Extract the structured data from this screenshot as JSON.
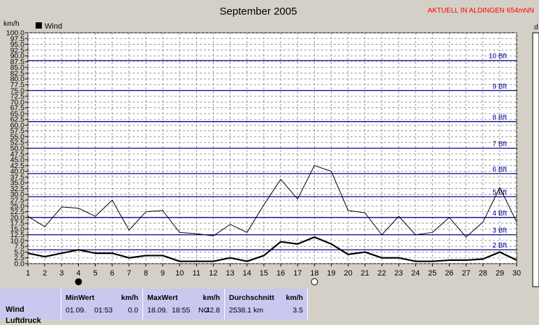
{
  "header": {
    "live_label": "AKTUELL IN ALDINGEN 654mNN"
  },
  "chart_data": {
    "type": "line",
    "title": "September 2005",
    "ylabel": "km/h",
    "right_label_fragment": "d",
    "ylim": [
      0,
      100
    ],
    "y_tick_step": 2.5,
    "y_tick_labels": [
      "0.0",
      "2.5",
      "5.0",
      "7.5",
      "10.0",
      "12.5",
      "15.0",
      "17.5",
      "20.0",
      "22.5",
      "25.0",
      "27.5",
      "30.0",
      "32.5",
      "35.0",
      "37.5",
      "40.0",
      "42.5",
      "45.0",
      "47.5",
      "50.0",
      "52.5",
      "55.0",
      "57.5",
      "60.0",
      "62.5",
      "65.0",
      "67.5",
      "70.0",
      "72.5",
      "75.0",
      "77.5",
      "80.0",
      "82.5",
      "85.0",
      "87.5",
      "90.0",
      "92.5",
      "95.0",
      "97.5",
      "100.0"
    ],
    "x": [
      1,
      2,
      3,
      4,
      5,
      6,
      7,
      8,
      9,
      10,
      11,
      12,
      13,
      14,
      15,
      16,
      17,
      18,
      19,
      20,
      21,
      22,
      23,
      24,
      25,
      26,
      27,
      28,
      29,
      30
    ],
    "xlim": [
      1,
      30
    ],
    "grid": true,
    "legend": {
      "position": "top-left",
      "entries": [
        {
          "name": "Wind",
          "color": "#000000"
        }
      ]
    },
    "series": [
      {
        "name": "Wind",
        "color": "#000000",
        "stroke": "thick",
        "values": [
          4.5,
          3,
          4.5,
          6,
          4.5,
          4.5,
          2.5,
          3.5,
          3.5,
          1,
          1,
          1,
          2.5,
          1,
          3.5,
          9.5,
          8.5,
          11.5,
          8.5,
          4,
          5,
          2.5,
          2.5,
          1,
          1,
          1.5,
          1.5,
          2,
          5,
          1.5
        ]
      },
      {
        "color": "#000000",
        "stroke": "thin",
        "values": [
          20.5,
          16,
          24.5,
          24,
          20.5,
          27.5,
          14.5,
          22.5,
          23,
          13.5,
          13,
          12,
          17,
          13.5,
          25.5,
          36.5,
          28,
          42.5,
          40,
          23,
          22,
          12.5,
          20.5,
          12.5,
          13.5,
          20,
          11.5,
          18,
          33,
          18
        ]
      }
    ],
    "beaufort_lines": [
      {
        "label": "2 Bft",
        "value": 6
      },
      {
        "label": "3 Bft",
        "value": 12.5
      },
      {
        "label": "4 Bft",
        "value": 20
      },
      {
        "label": "5 Bft",
        "value": 29
      },
      {
        "label": "6 Bft",
        "value": 39
      },
      {
        "label": "7 Bft",
        "value": 50
      },
      {
        "label": "8 Bft",
        "value": 61.5
      },
      {
        "label": "9 Bft",
        "value": 75
      },
      {
        "label": "10 Bft",
        "value": 88
      }
    ],
    "beaufort_color": "#00008b",
    "moon_markers": [
      {
        "day": 4,
        "phase": "new"
      },
      {
        "day": 18,
        "phase": "full"
      }
    ]
  },
  "stats": {
    "row_label": "Wind",
    "row_label_2": "Luftdruck",
    "min": {
      "header": "MinWert",
      "unit": "km/h",
      "date": "01.09.",
      "time": "01:53",
      "value": "0.0"
    },
    "max": {
      "header": "MaxWert",
      "unit": "km/h",
      "date_time": "18.09.  18:55",
      "direction": "NO",
      "value": "42.8"
    },
    "avg": {
      "header": "Durchschnitt",
      "unit": "km/h",
      "distance": "2538.1 km",
      "value": "3.5"
    }
  }
}
